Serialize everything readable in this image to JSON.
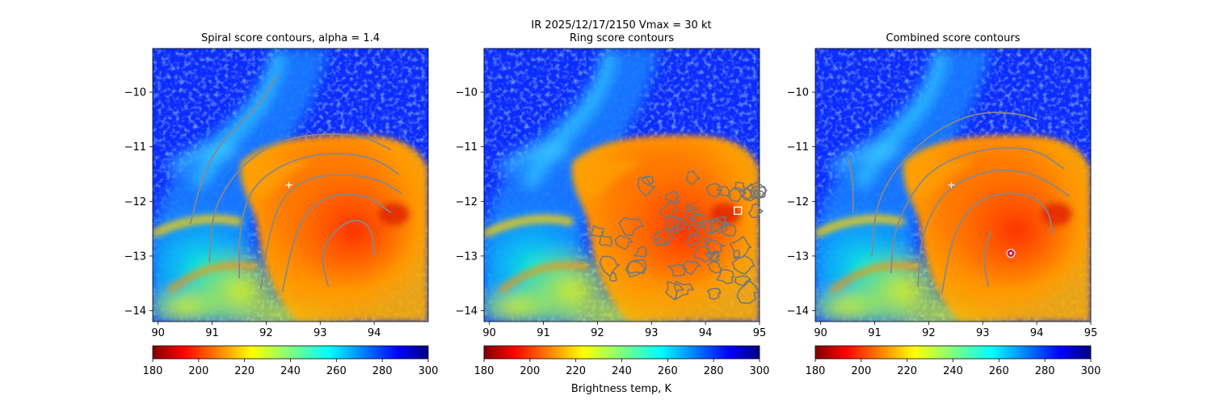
{
  "figure": {
    "suptitle_line1": "IR  2025/12/17/2150    Vmax = 30 kt",
    "colorbar_label": "Brightness temp, K"
  },
  "chart_data": [
    {
      "type": "heatmap",
      "title": "Spiral score contours, alpha =  1.4",
      "xlim": [
        89.9,
        95.0
      ],
      "ylim": [
        -14.2,
        -9.2
      ],
      "x_ticks": [
        "90",
        "91",
        "92",
        "93",
        "94"
      ],
      "y_ticks": [
        "−10",
        "−11",
        "−12",
        "−13",
        "−14"
      ],
      "x_tick_values": [
        90,
        91,
        92,
        93,
        94
      ],
      "y_tick_values": [
        -10,
        -11,
        -12,
        -13,
        -14
      ],
      "center_marker": {
        "x": 92.42,
        "y": -11.7,
        "symbol": "plus",
        "color": "#ffffff"
      },
      "contours": [
        [
          [
            90.6,
            -12.4
          ],
          [
            90.8,
            -11.6
          ],
          [
            91.1,
            -11.0
          ],
          [
            91.5,
            -10.6
          ],
          [
            91.9,
            -10.2
          ],
          [
            92.2,
            -9.7
          ]
        ],
        [
          [
            90.95,
            -13.1
          ],
          [
            91.0,
            -12.3
          ],
          [
            91.2,
            -11.8
          ],
          [
            91.6,
            -11.3
          ],
          [
            92.2,
            -10.9
          ],
          [
            93.0,
            -10.75
          ],
          [
            93.8,
            -10.8
          ],
          [
            94.3,
            -11.05
          ]
        ],
        [
          [
            91.5,
            -13.4
          ],
          [
            91.5,
            -12.6
          ],
          [
            91.65,
            -11.9
          ],
          [
            92.0,
            -11.5
          ],
          [
            92.6,
            -11.2
          ],
          [
            93.3,
            -11.1
          ],
          [
            94.0,
            -11.2
          ],
          [
            94.45,
            -11.5
          ]
        ],
        [
          [
            91.9,
            -13.6
          ],
          [
            92.05,
            -12.6
          ],
          [
            92.3,
            -11.9
          ],
          [
            92.8,
            -11.55
          ],
          [
            93.5,
            -11.5
          ],
          [
            94.1,
            -11.6
          ],
          [
            94.5,
            -11.85
          ]
        ],
        [
          [
            92.3,
            -13.65
          ],
          [
            92.5,
            -12.7
          ],
          [
            92.8,
            -12.1
          ],
          [
            93.3,
            -11.85
          ],
          [
            93.9,
            -11.9
          ],
          [
            94.3,
            -12.2
          ]
        ],
        [
          [
            93.15,
            -13.55
          ],
          [
            93.0,
            -13.0
          ],
          [
            93.2,
            -12.6
          ],
          [
            93.6,
            -12.3
          ],
          [
            93.95,
            -12.45
          ],
          [
            94.0,
            -13.0
          ]
        ]
      ],
      "contour_color": "#888888"
    },
    {
      "type": "heatmap",
      "title": "Ring score contours",
      "xlim": [
        89.9,
        95.0
      ],
      "ylim": [
        -14.2,
        -9.2
      ],
      "x_ticks": [
        "90",
        "91",
        "92",
        "93",
        "94",
        "95"
      ],
      "y_ticks": [
        "−10",
        "−11",
        "−12",
        "−13",
        "−14"
      ],
      "x_tick_values": [
        90,
        91,
        92,
        93,
        94,
        95
      ],
      "y_tick_values": [
        -10,
        -11,
        -12,
        -13,
        -14
      ],
      "center_marker": {
        "x": 94.6,
        "y": -12.17,
        "symbol": "square",
        "color": "#ffffff"
      },
      "ring_region": {
        "x_min": 92.0,
        "x_max": 95.0,
        "y_min": -13.7,
        "y_max": -11.3
      },
      "contour_color": "#777777"
    },
    {
      "type": "heatmap",
      "title": "Combined score contours",
      "xlim": [
        89.9,
        95.0
      ],
      "ylim": [
        -14.2,
        -9.2
      ],
      "x_ticks": [
        "90",
        "91",
        "92",
        "93",
        "94",
        "95"
      ],
      "y_ticks": [
        "−10",
        "−11",
        "−12",
        "−13",
        "−14"
      ],
      "x_tick_values": [
        90,
        91,
        92,
        93,
        94,
        95
      ],
      "y_tick_values": [
        -10,
        -11,
        -12,
        -13,
        -14
      ],
      "center_marker": {
        "x": 92.42,
        "y": -11.7,
        "symbol": "plus",
        "color": "#ffffff"
      },
      "best_marker": {
        "x": 93.52,
        "y": -12.95,
        "symbol": "circle",
        "color": "#cc1a4d"
      },
      "contours": [
        [
          [
            90.5,
            -11.2
          ],
          [
            90.6,
            -11.6
          ],
          [
            90.6,
            -12.2
          ]
        ],
        [
          [
            90.95,
            -13.0
          ],
          [
            91.0,
            -12.2
          ],
          [
            91.25,
            -11.6
          ],
          [
            91.7,
            -11.05
          ],
          [
            92.3,
            -10.6
          ],
          [
            93.0,
            -10.35
          ],
          [
            93.7,
            -10.4
          ],
          [
            94.0,
            -10.5
          ]
        ],
        [
          [
            91.3,
            -13.3
          ],
          [
            91.35,
            -12.6
          ],
          [
            91.6,
            -12.0
          ],
          [
            92.0,
            -11.45
          ],
          [
            92.6,
            -11.15
          ],
          [
            93.3,
            -11.0
          ],
          [
            94.0,
            -11.05
          ],
          [
            94.5,
            -11.4
          ]
        ],
        [
          [
            91.8,
            -13.55
          ],
          [
            91.85,
            -12.7
          ],
          [
            92.15,
            -12.0
          ],
          [
            92.6,
            -11.6
          ],
          [
            93.3,
            -11.4
          ],
          [
            94.0,
            -11.5
          ],
          [
            94.6,
            -11.9
          ]
        ],
        [
          [
            92.25,
            -13.65
          ],
          [
            92.4,
            -12.8
          ],
          [
            92.7,
            -12.15
          ],
          [
            93.2,
            -11.85
          ],
          [
            93.8,
            -11.85
          ],
          [
            94.2,
            -12.1
          ],
          [
            94.3,
            -12.6
          ]
        ],
        [
          [
            93.1,
            -13.55
          ],
          [
            93.0,
            -13.0
          ],
          [
            93.15,
            -12.55
          ]
        ]
      ],
      "contour_color": "#888888"
    }
  ],
  "colorbar": {
    "min": 180,
    "max": 300,
    "ticks": [
      "180",
      "200",
      "220",
      "240",
      "260",
      "280",
      "300"
    ],
    "tick_values": [
      180,
      200,
      220,
      240,
      260,
      280,
      300
    ],
    "colormap": "jet_r"
  }
}
